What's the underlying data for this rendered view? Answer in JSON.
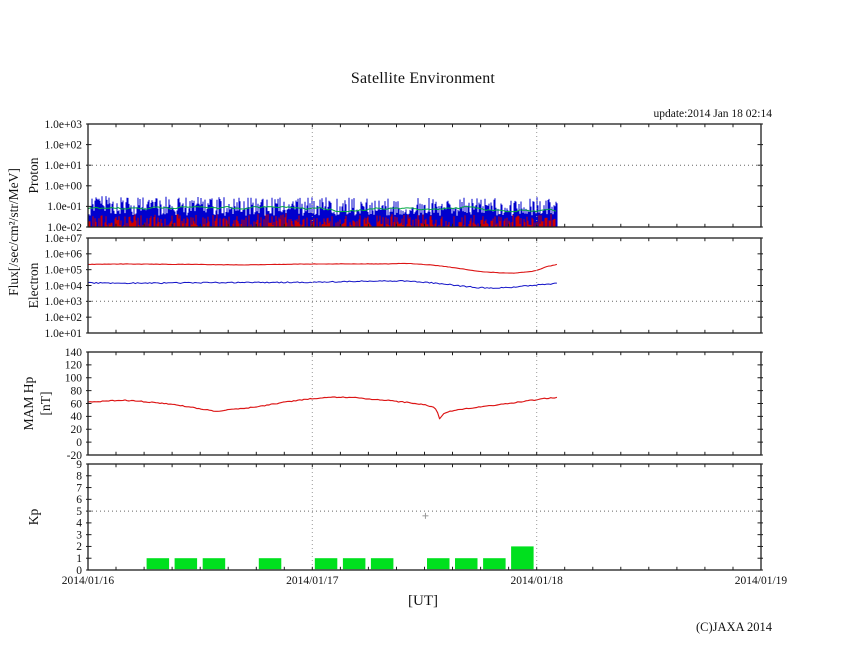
{
  "figure": {
    "title": "Satellite Environment",
    "update_text": "update:2014 Jan 18 02:14",
    "xlabel": "[UT]",
    "copyright": "(C)JAXA 2014",
    "flux_axis_label": "Flux[/sec/cm²/str/MeV]"
  },
  "x_axis": {
    "tick_labels": [
      "2014/01/16",
      "2014/01/17",
      "2014/01/18",
      "2014/01/19"
    ],
    "days_shown": 3,
    "minor_tick_hours": 3,
    "data_end_hour": 50.23,
    "grid": "dotted-vertical-at-day-boundaries"
  },
  "chart_data": [
    {
      "id": "proton",
      "type": "line",
      "title": "Proton flux",
      "ylabel": "Proton",
      "yscale": "log10",
      "ylim": [
        0.01,
        1000
      ],
      "ytick_values": [
        1000,
        100,
        10,
        1,
        0.1,
        0.01
      ],
      "ytick_labels": [
        "1.0e+03",
        "1.0e+02",
        "1.0e+01",
        "1.0e+00",
        "1.0e-01",
        "1.0e-02"
      ],
      "threshold_value": 10,
      "description": "Dense noisy spiky flux band between ~1e-2 and ~3e-1, data ends at update time",
      "series": [
        {
          "name": "proton-channel-blue",
          "color": "#0000CD",
          "render": "spikes",
          "base_log10": -2.0,
          "top_log10_min": -1.45,
          "top_log10_max": -0.55,
          "bias": 1.2,
          "burst_prob": 0.06,
          "burst_add": 0.12,
          "density": 1.0
        },
        {
          "name": "proton-channel-red",
          "color": "#CD0000",
          "render": "spikes",
          "base_log10": -2.0,
          "top_log10_min": -1.92,
          "top_log10_max": -1.38,
          "bias": 1.1,
          "burst_prob": 0.04,
          "burst_add": 0.1,
          "density": 0.62
        },
        {
          "name": "proton-channel-green",
          "color": "#00A841",
          "render": "jitter-line",
          "center_log10": -1.13,
          "range_log10": 0.12
        }
      ]
    },
    {
      "id": "electron",
      "type": "line",
      "title": "Electron flux",
      "ylabel": "Electron",
      "yscale": "log10",
      "ylim": [
        10,
        10000000
      ],
      "ytick_values": [
        10000000,
        1000000,
        100000,
        10000,
        1000,
        100,
        10
      ],
      "ytick_labels": [
        "1.0e+07",
        "1.0e+06",
        "1.0e+05",
        "1.0e+04",
        "1.0e+03",
        "1.0e+02",
        "1.0e+01"
      ],
      "threshold_value": 1000,
      "series": [
        {
          "name": "electron-high-red",
          "color": "#DC1414",
          "render": "points-line",
          "jitter_log10": 0.012,
          "width": 1.1,
          "points": [
            [
              0,
              214000
            ],
            [
              4,
              229000
            ],
            [
              8,
              219000
            ],
            [
              12,
              214000
            ],
            [
              16,
              200000
            ],
            [
              20,
              214000
            ],
            [
              24,
              229000
            ],
            [
              28,
              234000
            ],
            [
              32,
              229000
            ],
            [
              34,
              251000
            ],
            [
              36,
              214000
            ],
            [
              38,
              166000
            ],
            [
              40,
              112000
            ],
            [
              42,
              76000
            ],
            [
              44,
              63000
            ],
            [
              45.5,
              60000
            ],
            [
              47,
              71000
            ],
            [
              48,
              89000
            ],
            [
              49,
              151000
            ],
            [
              50.23,
              214000
            ]
          ]
        },
        {
          "name": "electron-low-blue",
          "color": "#1414C8",
          "render": "points-line",
          "jitter_log10": 0.035,
          "width": 1.0,
          "points": [
            [
              0,
              14500
            ],
            [
              6,
              14000
            ],
            [
              12,
              15000
            ],
            [
              18,
              15500
            ],
            [
              24,
              16000
            ],
            [
              28,
              18000
            ],
            [
              31,
              20000
            ],
            [
              34,
              19000
            ],
            [
              36,
              16000
            ],
            [
              38,
              13000
            ],
            [
              40,
              9000
            ],
            [
              42,
              7200
            ],
            [
              44,
              6800
            ],
            [
              46,
              8500
            ],
            [
              48,
              11000
            ],
            [
              50.23,
              13500
            ]
          ]
        }
      ]
    },
    {
      "id": "mam-hp",
      "type": "line",
      "title": "Magnetometer Hp",
      "ylabel": "MAM Hp",
      "ylabel2": "[nT]",
      "yscale": "linear",
      "ylim": [
        -20,
        140
      ],
      "ytick_values": [
        140,
        120,
        100,
        80,
        60,
        40,
        20,
        0,
        -20
      ],
      "ytick_labels": [
        "140",
        "120",
        "100",
        "80",
        "60",
        "40",
        "20",
        "0",
        "-20"
      ],
      "threshold_value": null,
      "series": [
        {
          "name": "hp-red",
          "color": "#DC1414",
          "render": "points-line",
          "jitter": 0.7,
          "width": 1.15,
          "points": [
            [
              0,
              62
            ],
            [
              2,
              64
            ],
            [
              4,
              65
            ],
            [
              6,
              63
            ],
            [
              9,
              59
            ],
            [
              12,
              52
            ],
            [
              13.5,
              48
            ],
            [
              15,
              50
            ],
            [
              17,
              53
            ],
            [
              19,
              57
            ],
            [
              21,
              62
            ],
            [
              23,
              66
            ],
            [
              25,
              69
            ],
            [
              27,
              70
            ],
            [
              29,
              69
            ],
            [
              30,
              67
            ],
            [
              31,
              66
            ],
            [
              32,
              65
            ],
            [
              33,
              63
            ],
            [
              34,
              62
            ],
            [
              35,
              60
            ],
            [
              36,
              58
            ],
            [
              37,
              54
            ],
            [
              37.3,
              50
            ],
            [
              37.6,
              36
            ],
            [
              38,
              44
            ],
            [
              38.5,
              47
            ],
            [
              39,
              49
            ],
            [
              40,
              51
            ],
            [
              42,
              55
            ],
            [
              44,
              58
            ],
            [
              46,
              62
            ],
            [
              48,
              66
            ],
            [
              49,
              68
            ],
            [
              50.23,
              69
            ]
          ]
        }
      ]
    },
    {
      "id": "kp",
      "type": "bar",
      "title": "Kp index",
      "ylabel": "Kp",
      "yscale": "linear",
      "ylim": [
        0,
        9
      ],
      "ytick_values": [
        9,
        8,
        7,
        6,
        5,
        4,
        3,
        2,
        1,
        0
      ],
      "ytick_labels": [
        "9",
        "8",
        "7",
        "6",
        "5",
        "4",
        "3",
        "2",
        "1",
        "0"
      ],
      "threshold_value": 5,
      "bar_color": "#00E01E",
      "slot_hours": 3,
      "values_by_3h_slot": [
        0,
        0,
        1,
        1,
        1,
        0,
        1,
        0,
        1,
        1,
        1,
        0,
        1,
        1,
        1,
        2
      ],
      "marker": {
        "shape": "plus",
        "color": "#999999",
        "hour": 36.1,
        "kp": 4.6
      }
    }
  ]
}
